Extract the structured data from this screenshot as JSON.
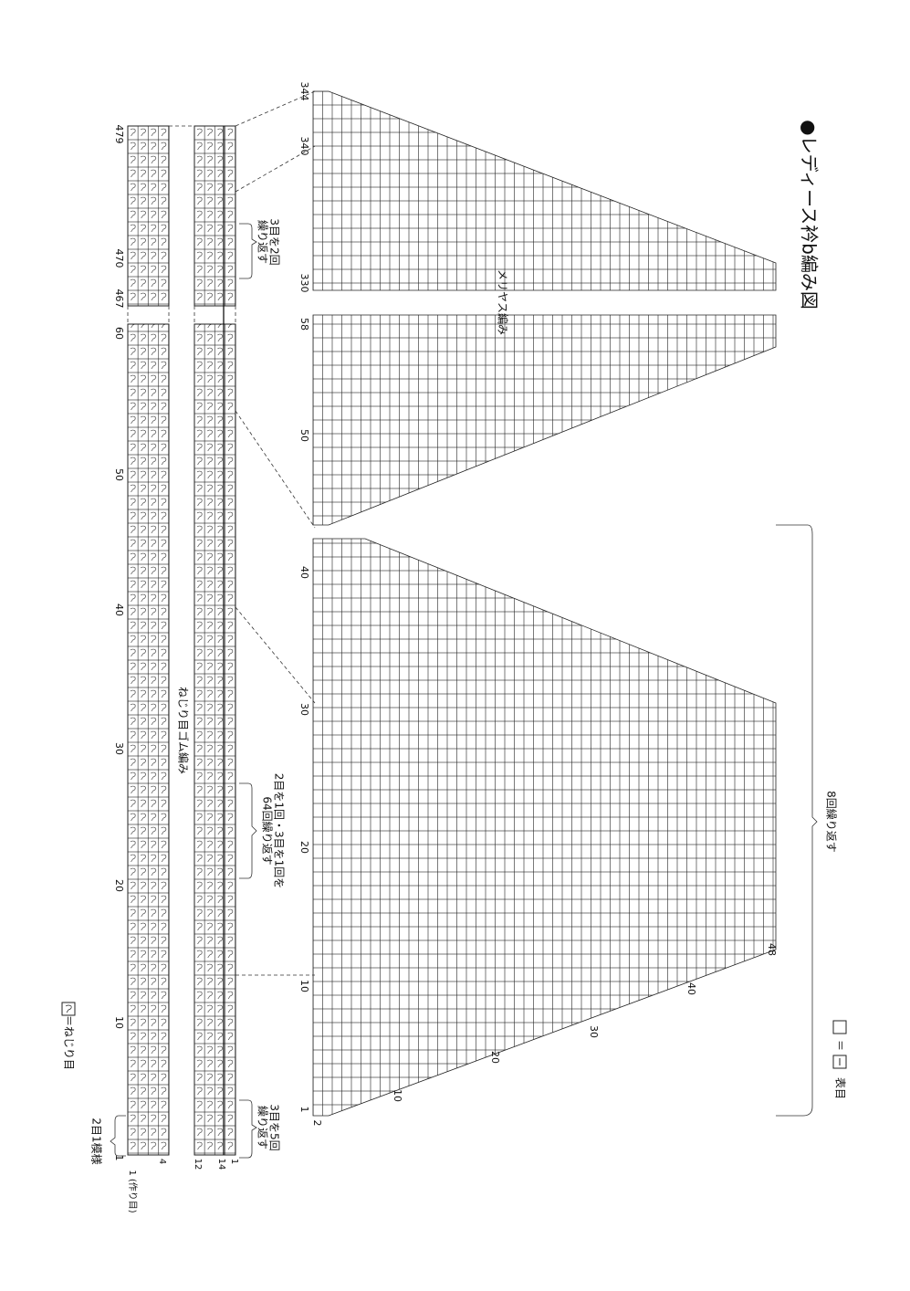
{
  "header": {
    "title": "●レディース衿b編み図"
  },
  "legend": {
    "knit_eq": "＝",
    "knit_name": "表目",
    "twist": "＝ねじり目"
  },
  "main_chart": {
    "label": "メリヤス編み",
    "repeat_note": "8回繰り返す",
    "row_numbers": [
      344,
      340,
      330,
      58,
      50,
      40,
      30,
      20,
      10,
      1,
      2
    ],
    "stitch_numbers": [
      48,
      40,
      30,
      20,
      10
    ]
  },
  "ribbing_chart": {
    "label": "ねじり目ゴム編み",
    "row_numbers": [
      479,
      470,
      467,
      60,
      50,
      40,
      30,
      20,
      10,
      1
    ],
    "column_labels": [
      "1 (作り目)",
      4,
      12,
      14,
      1
    ],
    "notes": [
      [
        "3目を2回",
        "繰り返す"
      ],
      [
        "2目を1回・3目を1回を",
        "64回繰り返す"
      ],
      [
        "3目を5回",
        "繰り返す"
      ],
      [
        "2目1模様"
      ]
    ]
  }
}
